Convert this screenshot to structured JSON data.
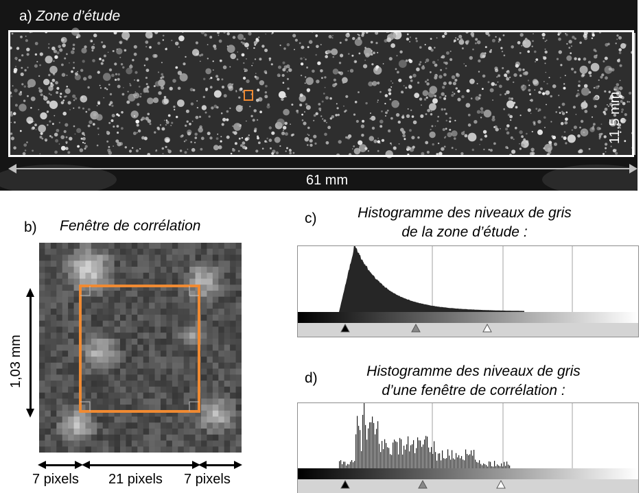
{
  "panel_a": {
    "letter": "a)",
    "title": "Zone d’étude",
    "width_label": "61 mm",
    "height_label": "11,5 mm",
    "colors": {
      "frame": "#ffffff",
      "window": "#f08a32",
      "dimension": "#bfbfbf"
    }
  },
  "panel_b": {
    "letter": "b)",
    "title": "Fenêtre de corrélation",
    "height_label": "1,03 mm",
    "left_margin_label": "7 pixels",
    "center_label": "21 pixels",
    "right_margin_label": "7 pixels",
    "colors": {
      "window": "#f08a32"
    }
  },
  "panel_c": {
    "letter": "c)",
    "title_line1": "Histogramme des niveaux de gris",
    "title_line2": "de la zone d’étude :"
  },
  "panel_d": {
    "letter": "d)",
    "title_line1": "Histogramme des niveaux de gris",
    "title_line2": "d’une fenêtre de corrélation :"
  }
}
